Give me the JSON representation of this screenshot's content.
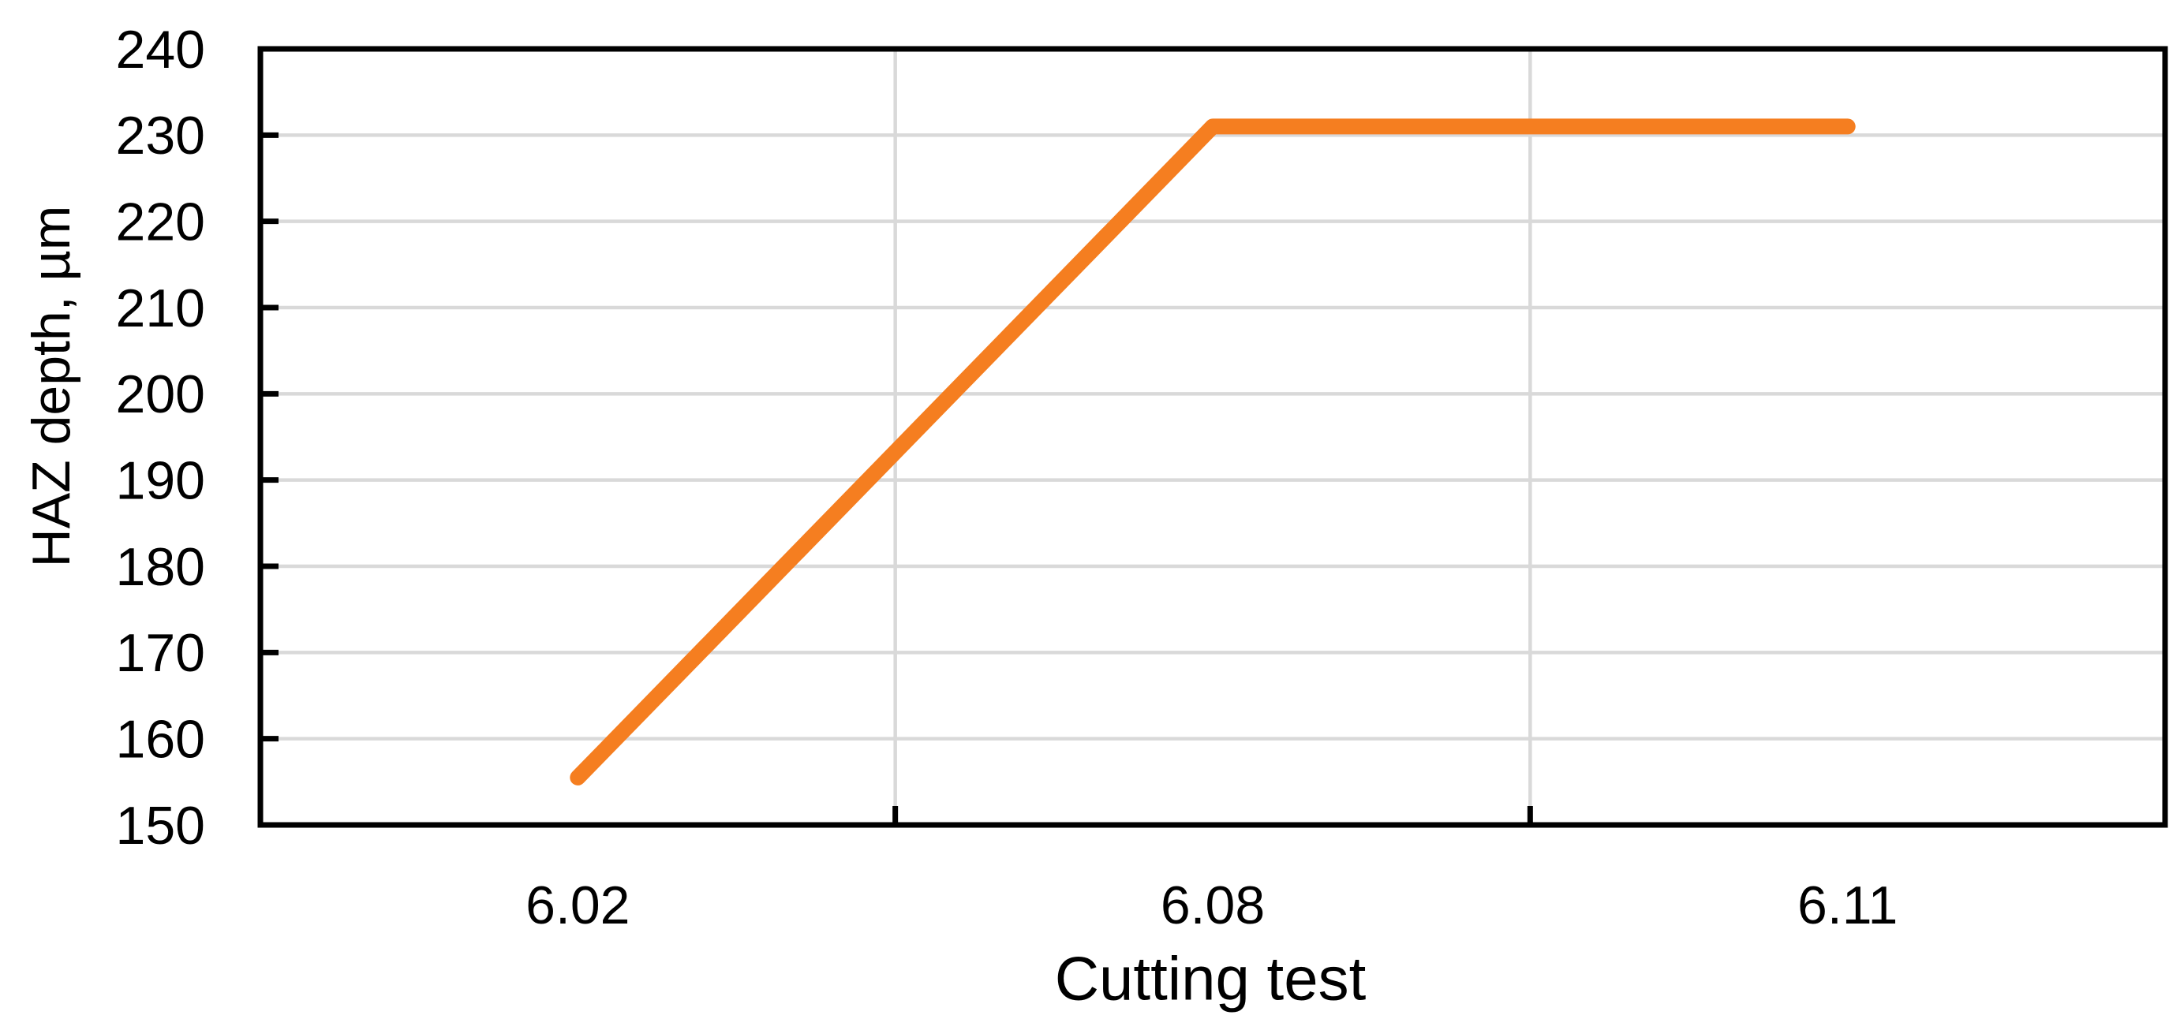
{
  "chart_data": {
    "type": "line",
    "title": "",
    "xlabel": "Cutting test",
    "ylabel": "HAZ depth, µm",
    "categories": [
      "6.02",
      "6.08",
      "6.11"
    ],
    "series": [
      {
        "name": "HAZ depth",
        "values": [
          155.5,
          231,
          231
        ]
      }
    ],
    "ylim": [
      150,
      240
    ],
    "ytick_step": 10,
    "yticks": [
      150,
      160,
      170,
      180,
      190,
      200,
      210,
      220,
      230,
      240
    ],
    "grid": true,
    "legend": "none",
    "colors": {
      "line": "#F57E20",
      "gridline": "#D9D9D9",
      "axis": "#000000",
      "text": "#000000",
      "background": "#FFFFFF"
    }
  }
}
